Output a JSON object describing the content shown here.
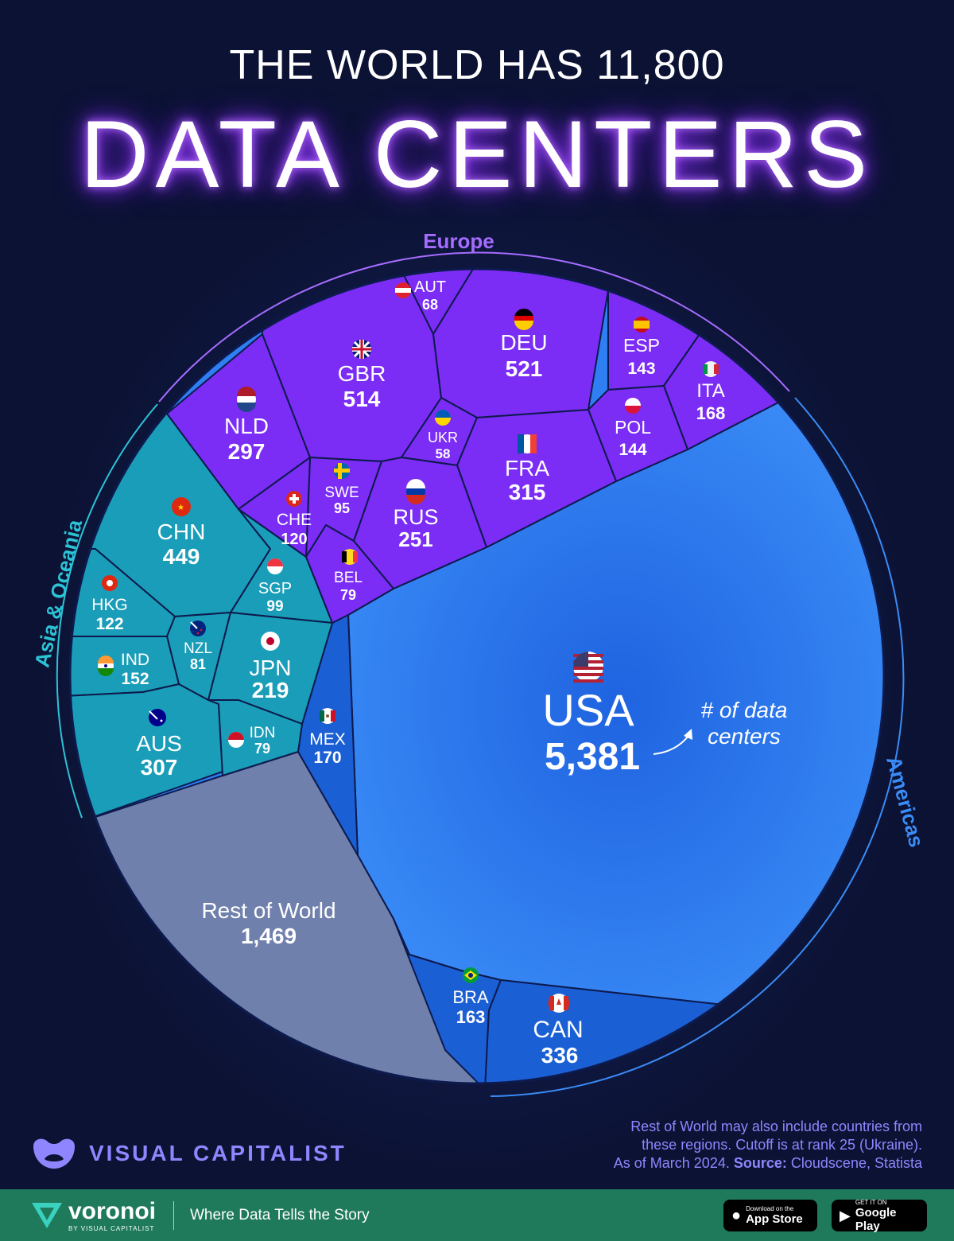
{
  "header": {
    "title_top": "THE WORLD HAS 11,800",
    "title_main": "DATA CENTERS"
  },
  "chart_data": {
    "type": "voronoi-treemap",
    "title": "THE WORLD HAS 11,800 DATA CENTERS",
    "total": 11800,
    "unit_note": "# of data centers",
    "regions": [
      {
        "name": "Europe",
        "color": "#7b2cf5",
        "items": [
          {
            "code": "AUT",
            "value": "68",
            "flag": "aut-flag-icon"
          },
          {
            "code": "DEU",
            "value": "521",
            "flag": "deu-flag-icon"
          },
          {
            "code": "ESP",
            "value": "143",
            "flag": "esp-flag-icon"
          },
          {
            "code": "ITA",
            "value": "168",
            "flag": "ita-flag-icon"
          },
          {
            "code": "GBR",
            "value": "514",
            "flag": "gbr-flag-icon"
          },
          {
            "code": "NLD",
            "value": "297",
            "flag": "nld-flag-icon"
          },
          {
            "code": "UKR",
            "value": "58",
            "flag": "ukr-flag-icon"
          },
          {
            "code": "POL",
            "value": "144",
            "flag": "pol-flag-icon"
          },
          {
            "code": "FRA",
            "value": "315",
            "flag": "fra-flag-icon"
          },
          {
            "code": "SWE",
            "value": "95",
            "flag": "swe-flag-icon"
          },
          {
            "code": "CHE",
            "value": "120",
            "flag": "che-flag-icon"
          },
          {
            "code": "RUS",
            "value": "251",
            "flag": "rus-flag-icon"
          },
          {
            "code": "BEL",
            "value": "79",
            "flag": "bel-flag-icon"
          }
        ]
      },
      {
        "name": "Asia & Oceania",
        "color": "#1596b3",
        "items": [
          {
            "code": "CHN",
            "value": "449",
            "flag": "chn-flag-icon"
          },
          {
            "code": "SGP",
            "value": "99",
            "flag": "sgp-flag-icon"
          },
          {
            "code": "HKG",
            "value": "122",
            "flag": "hkg-flag-icon"
          },
          {
            "code": "NZL",
            "value": "81",
            "flag": "nzl-flag-icon"
          },
          {
            "code": "IND",
            "value": "152",
            "flag": "ind-flag-icon"
          },
          {
            "code": "JPN",
            "value": "219",
            "flag": "jpn-flag-icon"
          },
          {
            "code": "AUS",
            "value": "307",
            "flag": "aus-flag-icon"
          },
          {
            "code": "IDN",
            "value": "79",
            "flag": "idn-flag-icon"
          }
        ]
      },
      {
        "name": "Americas",
        "color": "#2a7cf0",
        "items": [
          {
            "code": "USA",
            "value": "5,381",
            "flag": "usa-flag-icon"
          },
          {
            "code": "MEX",
            "value": "170",
            "flag": "mex-flag-icon"
          },
          {
            "code": "BRA",
            "value": "163",
            "flag": "bra-flag-icon"
          },
          {
            "code": "CAN",
            "value": "336",
            "flag": "can-flag-icon"
          }
        ]
      },
      {
        "name": "",
        "color": "#6b7aa8",
        "items": [
          {
            "code": "Rest of World",
            "value": "1,469",
            "flag": ""
          }
        ]
      }
    ],
    "annotation": {
      "line1": "# of data",
      "line2": "centers"
    }
  },
  "notes": {
    "line1": "Rest of World may also include countries from",
    "line2": "these regions. Cutoff is at rank 25 (Ukraine).",
    "line3_prefix": "As of March 2024.",
    "source_label": "Source:",
    "source_text": "Cloudscene, Statista"
  },
  "brand": {
    "name": "VISUAL CAPITALIST",
    "footer_name": "voronoi",
    "footer_sub": "BY VISUAL CAPITALIST",
    "tagline": "Where Data Tells the Story",
    "appstore_small": "Download on the",
    "appstore_big": "App Store",
    "gplay_small": "GET IT ON",
    "gplay_big": "Google Play"
  },
  "colors": {
    "background": "#0b1233",
    "europe": "#7b2cf5",
    "asia": "#1596b3",
    "americas_usa": "#2a7cf0",
    "americas_other": "#1c63d8",
    "rest": "#6b7aa8",
    "footer": "#1f7a5b",
    "accent_text": "#8f86ff"
  }
}
